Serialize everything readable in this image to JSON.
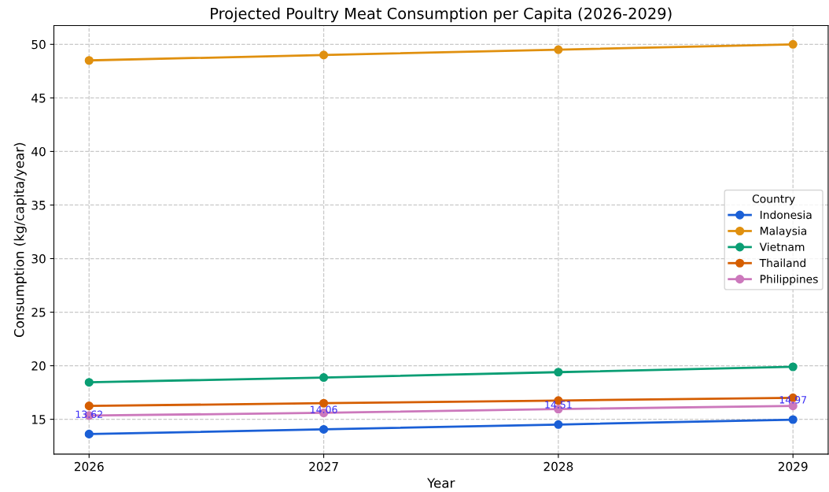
{
  "chart_data": {
    "type": "line",
    "title": "Projected Poultry Meat Consumption per Capita (2026-2029)",
    "xlabel": "Year",
    "ylabel": "Consumption (kg/capita/year)",
    "legend_title": "Country",
    "legend": "center right",
    "grid": true,
    "marker": "circle",
    "line_style": "solid",
    "x": [
      2026,
      2027,
      2028,
      2029
    ],
    "xlim": [
      2025.85,
      2029.15
    ],
    "xticks": [
      2026,
      2027,
      2028,
      2029
    ],
    "ylim": [
      11.75,
      51.75
    ],
    "yticks": [
      15,
      20,
      25,
      30,
      35,
      40,
      45,
      50
    ],
    "series": [
      {
        "name": "Indonesia",
        "color": "#1a5fd6",
        "values": [
          13.62,
          14.06,
          14.51,
          14.97
        ],
        "value_labels": [
          "13.62",
          "14.06",
          "14.51",
          "14.97"
        ]
      },
      {
        "name": "Malaysia",
        "color": "#e0900f",
        "values": [
          48.5,
          49.0,
          49.5,
          50.0
        ]
      },
      {
        "name": "Vietnam",
        "color": "#0a9e74",
        "values": [
          18.45,
          18.9,
          19.4,
          19.9
        ]
      },
      {
        "name": "Thailand",
        "color": "#d55e00",
        "values": [
          16.25,
          16.5,
          16.75,
          17.0
        ]
      },
      {
        "name": "Philippines",
        "color": "#cc78bc",
        "values": [
          15.35,
          15.6,
          15.95,
          16.25
        ]
      }
    ]
  }
}
